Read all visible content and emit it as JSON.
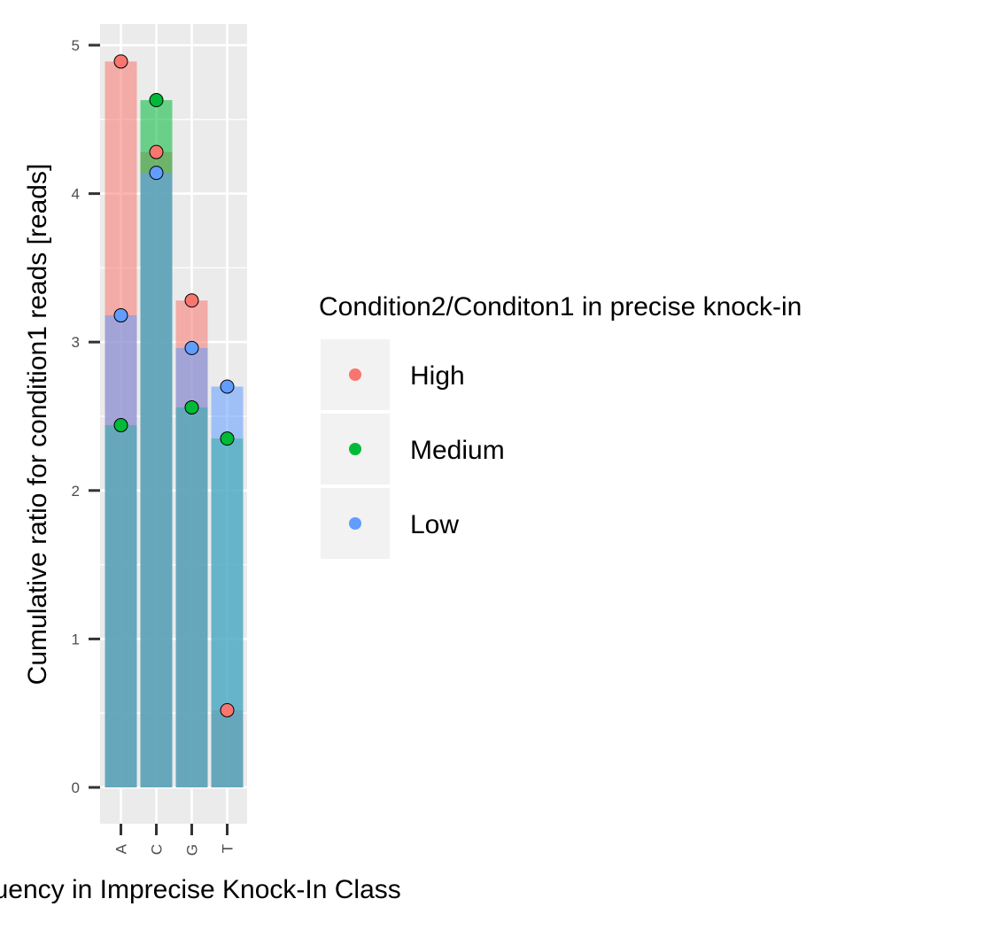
{
  "chart_data": {
    "type": "bar",
    "xlabel": "Sequency in Imprecise Knock-In Class",
    "ylabel": "Cumulative ratio for condition1 reads [reads]",
    "categories": [
      "A",
      "C",
      "G",
      "T"
    ],
    "ylim": [
      -0.25,
      5.15
    ],
    "yticks": [
      0,
      1,
      2,
      3,
      4,
      5
    ],
    "grid": true,
    "legend": {
      "title": "Condition2/Conditon1 in precise knock-in",
      "position": "right"
    },
    "series": [
      {
        "name": "High",
        "color": "#F8766D",
        "values": [
          4.89,
          4.28,
          3.28,
          0.52
        ]
      },
      {
        "name": "Medium",
        "color": "#00BA38",
        "values": [
          2.44,
          4.63,
          2.56,
          2.35
        ]
      },
      {
        "name": "Low",
        "color": "#619CFF",
        "values": [
          3.18,
          4.14,
          2.96,
          2.7
        ]
      }
    ]
  }
}
